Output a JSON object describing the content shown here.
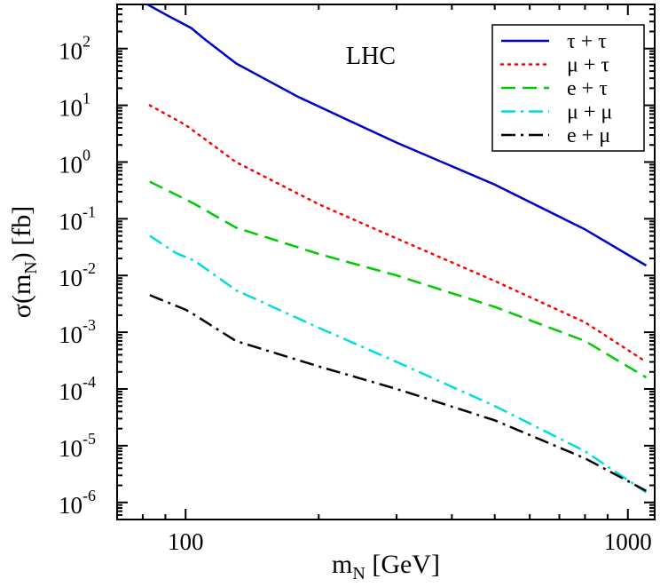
{
  "chart_data": {
    "type": "line",
    "title": "",
    "annotation": "LHC",
    "xlabel": {
      "main": "m",
      "sub": "N",
      "rest": " [GeV]"
    },
    "ylabel": {
      "main": "σ(m",
      "sub": "N",
      "rest": ") [fb]"
    },
    "xscale": "log",
    "yscale": "log",
    "xlim": [
      70,
      1150
    ],
    "ylim": [
      5e-07,
      600
    ],
    "grid": false,
    "legend_position": "top-right",
    "x_ticks": [
      {
        "value": 100,
        "label": "100"
      },
      {
        "value": 1000,
        "label": "1000"
      }
    ],
    "y_ticks": [
      {
        "value": 1e-06,
        "base": "10",
        "exp": "-6"
      },
      {
        "value": 1e-05,
        "base": "10",
        "exp": "-5"
      },
      {
        "value": 0.0001,
        "base": "10",
        "exp": "-4"
      },
      {
        "value": 0.001,
        "base": "10",
        "exp": "-3"
      },
      {
        "value": 0.01,
        "base": "10",
        "exp": "-2"
      },
      {
        "value": 0.1,
        "base": "10",
        "exp": "-1"
      },
      {
        "value": 1,
        "base": "10",
        "exp": "0"
      },
      {
        "value": 10,
        "base": "10",
        "exp": "1"
      },
      {
        "value": 100,
        "base": "10",
        "exp": "2"
      }
    ],
    "series": [
      {
        "name": "τ + τ",
        "color": "#0000cc",
        "dash": "solid",
        "x": [
          82,
          90,
          103,
          110,
          130,
          180,
          300,
          500,
          800,
          1100
        ],
        "y": [
          600,
          400,
          230,
          150,
          55,
          14,
          2.2,
          0.4,
          0.065,
          0.015
        ]
      },
      {
        "name": "μ + τ",
        "color": "#ff0000",
        "dash": "dotted",
        "x": [
          83,
          100,
          130,
          200,
          300,
          500,
          800,
          1100
        ],
        "y": [
          10,
          4.5,
          1,
          0.18,
          0.045,
          0.008,
          0.0015,
          0.0003
        ]
      },
      {
        "name": "e + τ",
        "color": "#00cc00",
        "dash": "dashed",
        "x": [
          83,
          100,
          105,
          130,
          200,
          300,
          500,
          800,
          1100
        ],
        "y": [
          0.45,
          0.22,
          0.18,
          0.07,
          0.024,
          0.01,
          0.0028,
          0.0007,
          0.00016
        ]
      },
      {
        "name": "μ + μ",
        "color": "#00dddd",
        "dash": "dashdot",
        "x": [
          83,
          95,
          105,
          130,
          200,
          300,
          500,
          800,
          1100
        ],
        "y": [
          0.05,
          0.025,
          0.018,
          0.0055,
          0.0012,
          0.0003,
          5e-05,
          8e-06,
          1.5e-06
        ]
      },
      {
        "name": "e + μ",
        "color": "#000000",
        "dash": "dashdot",
        "x": [
          83,
          100,
          105,
          130,
          200,
          300,
          500,
          800,
          1100
        ],
        "y": [
          0.0045,
          0.0025,
          0.002,
          0.0007,
          0.00025,
          0.0001,
          2.8e-05,
          6e-06,
          1.6e-06
        ]
      }
    ]
  }
}
